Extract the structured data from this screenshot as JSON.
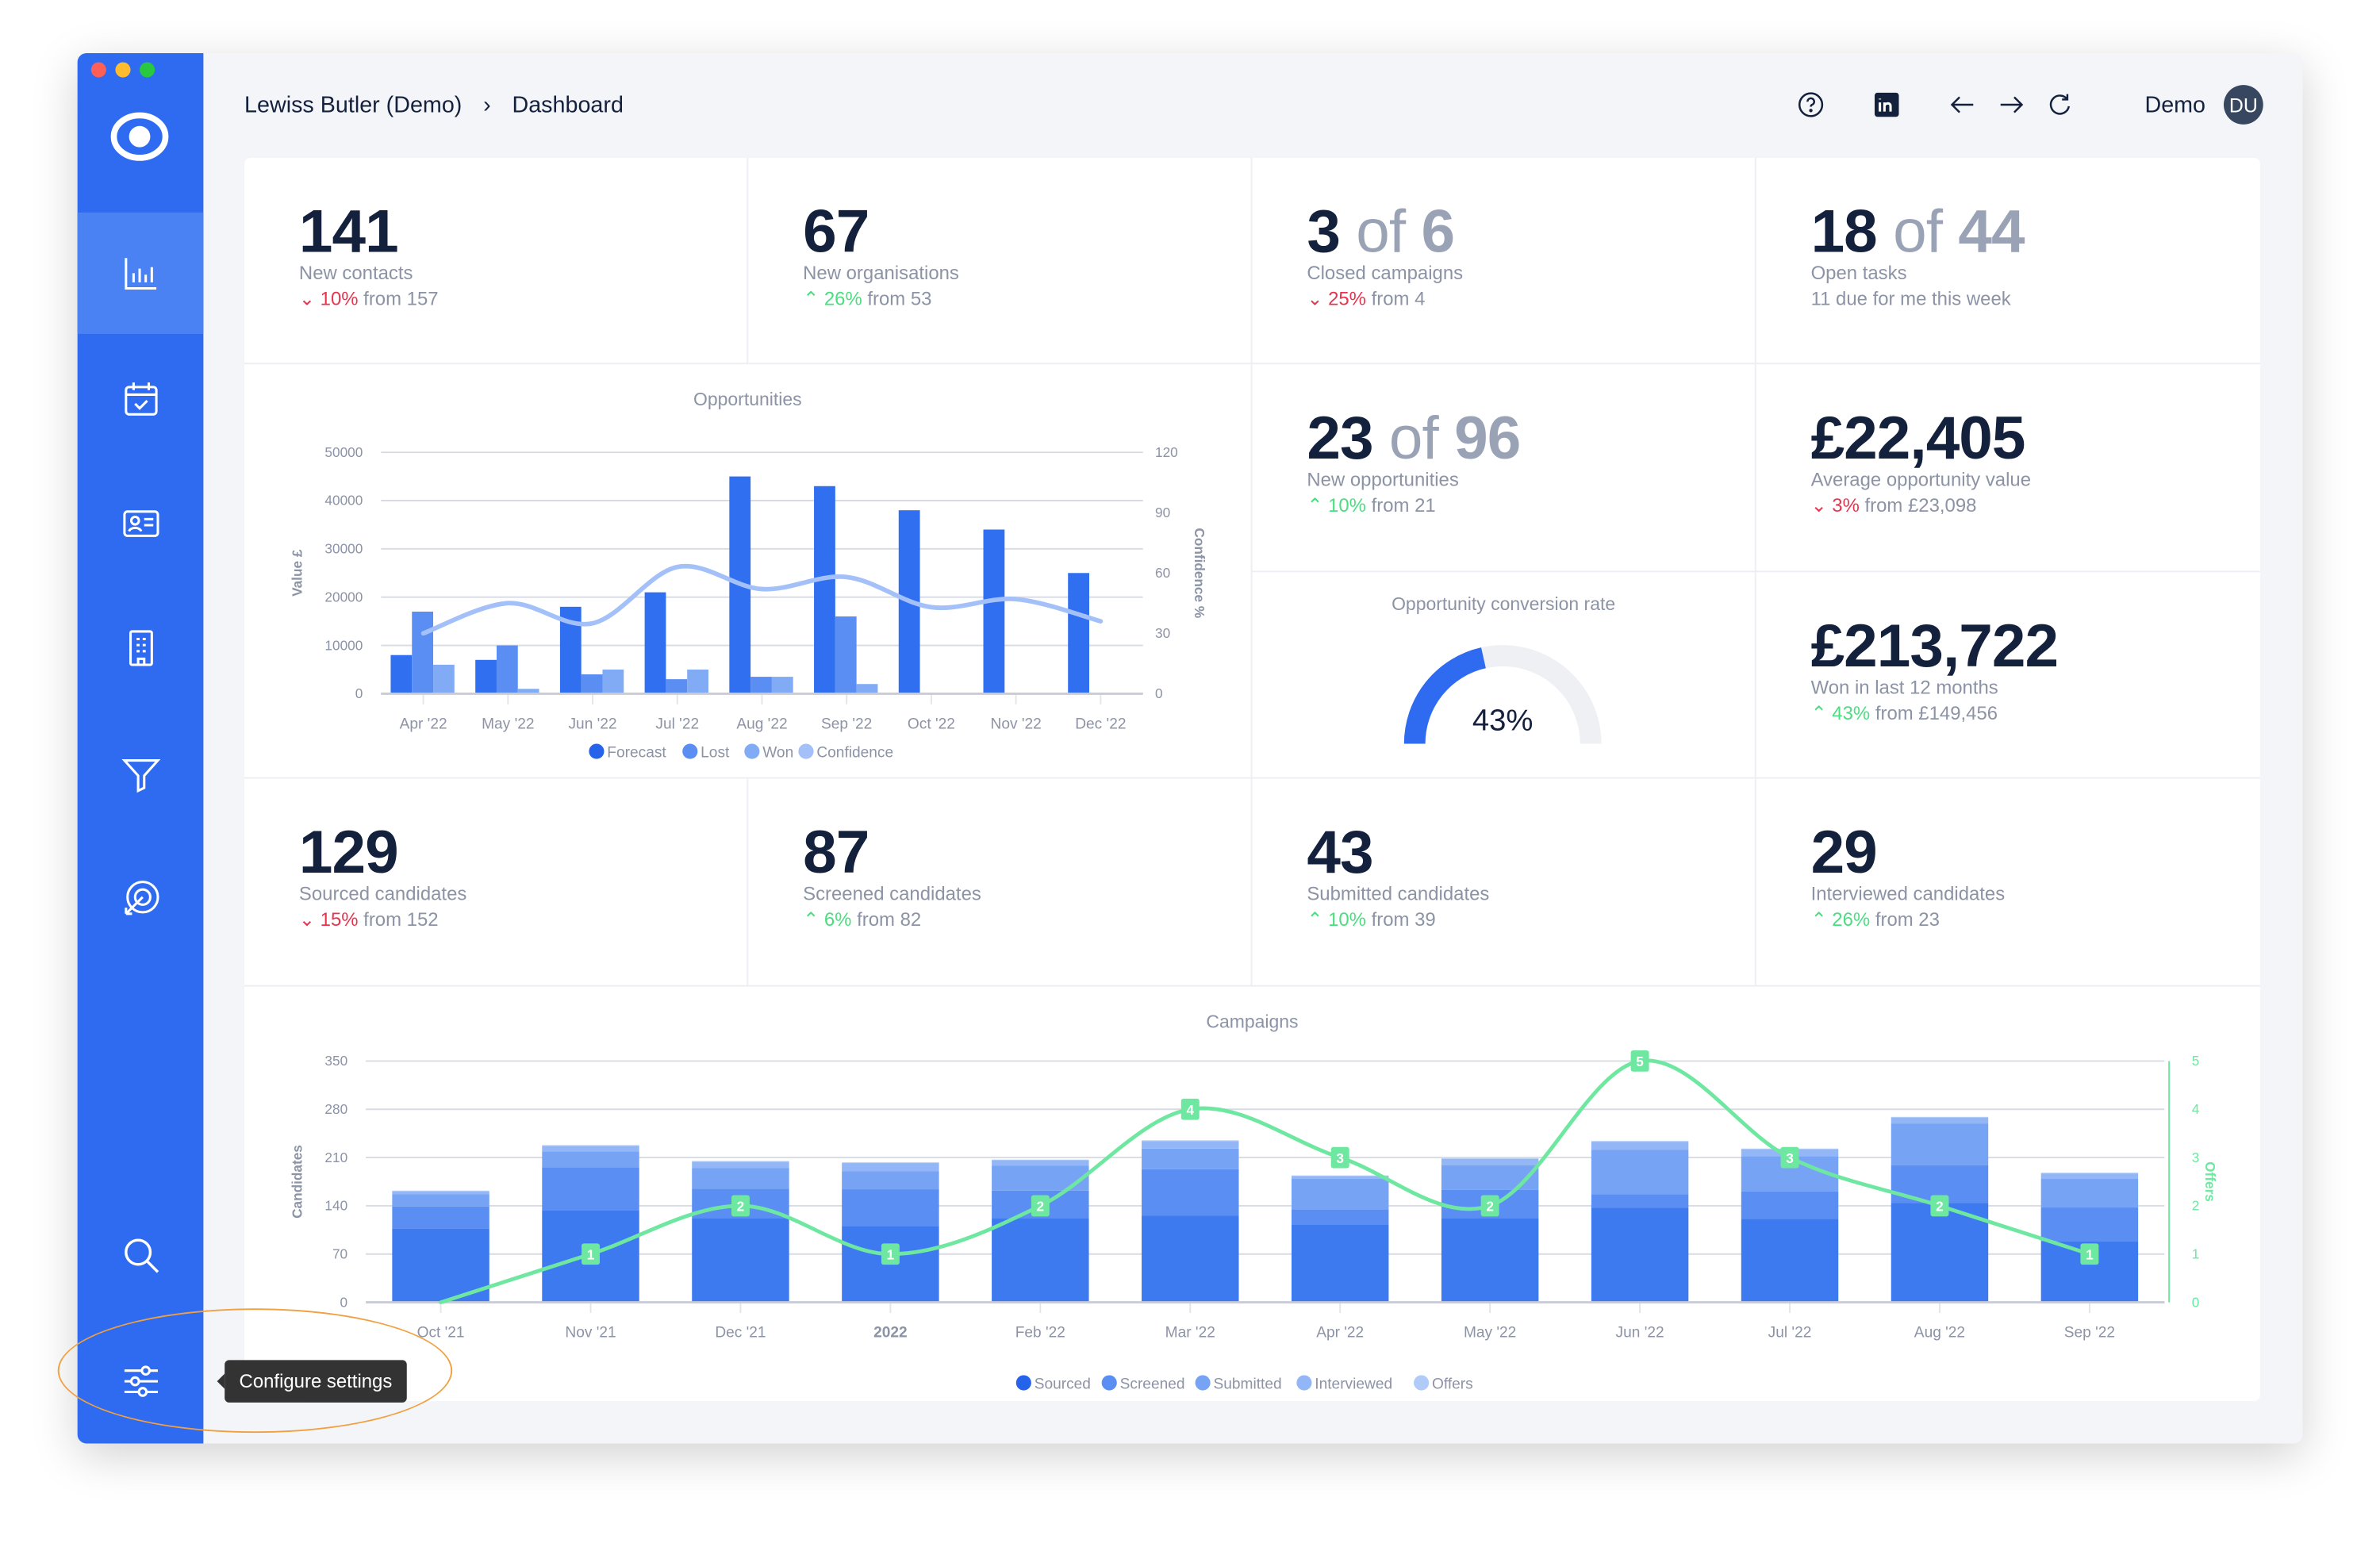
{
  "colors": {
    "sidebar": "#2f6bf0",
    "text": "#14213d",
    "down": "#e8344e",
    "up": "#4ade80",
    "offers_line": "#6ee7a0"
  },
  "header": {
    "breadcrumb": [
      "Lewiss Butler (Demo)",
      "Dashboard"
    ],
    "user": "Demo",
    "avatar": "DU",
    "icons": [
      "help-icon",
      "linkedin-icon",
      "back-arrow-icon",
      "forward-arrow-icon",
      "refresh-icon"
    ]
  },
  "sidebar": {
    "items": [
      "reports",
      "calendar",
      "contacts",
      "organisations",
      "pipeline",
      "campaigns",
      "search",
      "settings"
    ],
    "active": "reports"
  },
  "tooltip": "Configure settings",
  "kpis": [
    {
      "value": "141",
      "label": "New contacts",
      "dir": "down",
      "pct": "10%",
      "from": " from 157"
    },
    {
      "value": "67",
      "label": "New organisations",
      "dir": "up",
      "pct": "26%",
      "from": " from 53"
    },
    {
      "value": "3",
      "of": " of ",
      "total": "6",
      "label": "Closed campaigns",
      "dir": "down",
      "pct": "25%",
      "from": " from 4"
    },
    {
      "value": "18",
      "of": " of ",
      "total": "44",
      "label": "Open tasks",
      "note": "11 due for me this week"
    },
    {
      "value": "23",
      "of": " of ",
      "total": "96",
      "label": "New opportunities",
      "dir": "up",
      "pct": "10%",
      "from": " from 21"
    },
    {
      "value": "£22,405",
      "label": "Average opportunity value",
      "dir": "down",
      "pct": "3%",
      "from": " from £23,098"
    },
    {
      "value": "£213,722",
      "label": "Won in last 12 months",
      "dir": "up",
      "pct": "43%",
      "from": " from £149,456"
    },
    {
      "value": "129",
      "label": "Sourced candidates",
      "dir": "down",
      "pct": "15%",
      "from": " from 152"
    },
    {
      "value": "87",
      "label": "Screened candidates",
      "dir": "up",
      "pct": "6%",
      "from": " from 82"
    },
    {
      "value": "43",
      "label": "Submitted candidates",
      "dir": "up",
      "pct": "10%",
      "from": " from 39"
    },
    {
      "value": "29",
      "label": "Interviewed candidates",
      "dir": "up",
      "pct": "26%",
      "from": " from 23"
    }
  ],
  "gauge": {
    "title": "Opportunity conversion rate",
    "value": 43,
    "label": "43%"
  },
  "chart_data": [
    {
      "type": "bar",
      "title": "Opportunities",
      "ylabel": "Value £",
      "y2label": "Confidence %",
      "ylim": [
        0,
        50000
      ],
      "y2lim": [
        0,
        120
      ],
      "yticks": [
        "0",
        "10000",
        "20000",
        "30000",
        "40000",
        "50000"
      ],
      "y2ticks": [
        "0",
        "30",
        "60",
        "90",
        "120"
      ],
      "categories": [
        "Apr '22",
        "May '22",
        "Jun '22",
        "Jul '22",
        "Aug '22",
        "Sep '22",
        "Oct '22",
        "Nov '22",
        "Dec '22"
      ],
      "series": [
        {
          "name": "Forecast",
          "color": "#2f6ff0",
          "values": [
            8000,
            7000,
            18000,
            21000,
            45000,
            43000,
            38000,
            34000,
            25000
          ]
        },
        {
          "name": "Lost",
          "color": "#5b8ef3",
          "values": [
            17000,
            10000,
            4000,
            3000,
            3500,
            16000,
            0,
            0,
            0
          ]
        },
        {
          "name": "Won",
          "color": "#82abf6",
          "values": [
            6000,
            1000,
            5000,
            5000,
            3500,
            2000,
            0,
            0,
            0
          ]
        },
        {
          "name": "Confidence",
          "color": "#a3c0f8",
          "type": "line",
          "axis": "right",
          "values": [
            30,
            45,
            35,
            63,
            52,
            58,
            43,
            47,
            36
          ]
        }
      ],
      "legend": "bottom",
      "grid": true
    },
    {
      "type": "bar",
      "stacked": true,
      "title": "Campaigns",
      "ylabel": "Candidates",
      "y2label": "Offers",
      "ylim": [
        0,
        350
      ],
      "y2lim": [
        0,
        5
      ],
      "yticks": [
        "0",
        "70",
        "140",
        "210",
        "280",
        "350"
      ],
      "y2ticks": [
        "0",
        "1",
        "2",
        "3",
        "4",
        "5"
      ],
      "categories": [
        "Oct '21",
        "Nov '21",
        "Dec '21",
        "2022",
        "Feb '22",
        "Mar '22",
        "Apr '22",
        "May '22",
        "Jun '22",
        "Jul '22",
        "Aug '22",
        "Sep '22"
      ],
      "series": [
        {
          "name": "Sourced",
          "color": "#3d7af0",
          "values": [
            107,
            133,
            122,
            110,
            122,
            126,
            113,
            122,
            137,
            121,
            144,
            89
          ]
        },
        {
          "name": "Screened",
          "color": "#5a8ef2",
          "values": [
            32,
            63,
            43,
            54,
            40,
            67,
            22,
            41,
            20,
            40,
            55,
            49
          ]
        },
        {
          "name": "Submitted",
          "color": "#76a3f4",
          "values": [
            18,
            23,
            30,
            26,
            36,
            30,
            44,
            36,
            64,
            51,
            60,
            41
          ]
        },
        {
          "name": "Interviewed",
          "color": "#93b7f6",
          "values": [
            4,
            8,
            9,
            12,
            8,
            11,
            4,
            9,
            12,
            10,
            9,
            8
          ]
        },
        {
          "name": "Offers",
          "color": "#b0cbf8",
          "values": [
            1,
            1,
            1,
            1,
            1,
            1,
            1,
            1,
            1,
            1,
            1,
            1
          ]
        },
        {
          "name": "Offers",
          "type": "line",
          "axis": "right",
          "color": "#6ee7a0",
          "values": [
            0,
            1,
            2,
            1,
            2,
            4,
            3,
            2,
            5,
            3,
            2,
            1
          ]
        }
      ],
      "legend": "bottom",
      "grid": true
    }
  ]
}
